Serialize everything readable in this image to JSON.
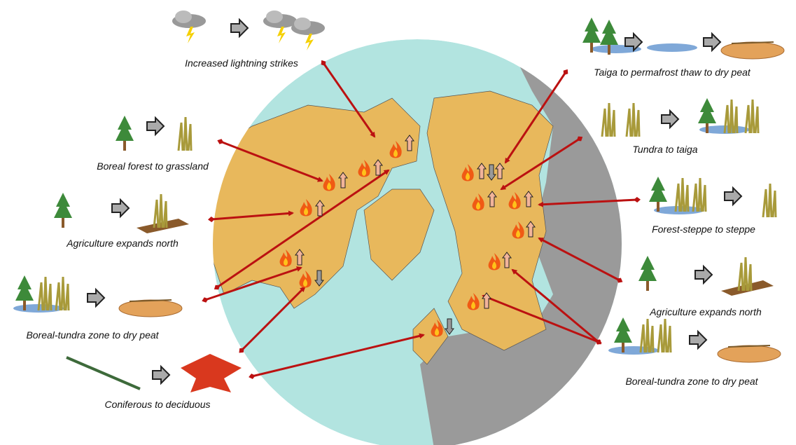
{
  "panels": [
    {
      "label": "Increased lightning strikes"
    },
    {
      "label": "Taiga to permafrost thaw to dry peat"
    },
    {
      "label": "Boreal forest to grassland"
    },
    {
      "label": "Tundra to taiga"
    },
    {
      "label": "Agriculture expands north"
    },
    {
      "label": "Forest-steppe to steppe"
    },
    {
      "label": "Boreal-tundra zone to dry peat"
    },
    {
      "label": "Agriculture expands north"
    },
    {
      "label": "Coniferous to deciduous"
    },
    {
      "label": "Boreal-tundra zone to dry peat"
    }
  ]
}
